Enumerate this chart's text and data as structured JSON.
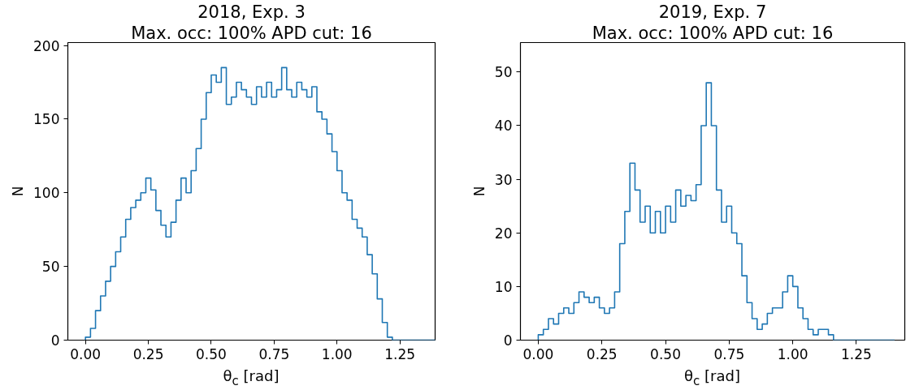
{
  "chart_data": [
    {
      "type": "histogram",
      "title": "2018, Exp. 3",
      "subtitle": "Max. occ: 100% APD cut: 16",
      "xlabel": "θ$_{c}$ [rad]",
      "ylabel": "N",
      "color": "#1f77b4",
      "bins": [
        0.0,
        0.02,
        0.04,
        0.06,
        0.08,
        0.1,
        0.12,
        0.14,
        0.16,
        0.18,
        0.2,
        0.22,
        0.24,
        0.26,
        0.28,
        0.3,
        0.32,
        0.34,
        0.36,
        0.38,
        0.4,
        0.42,
        0.44,
        0.46,
        0.48,
        0.5,
        0.52,
        0.54,
        0.56,
        0.58,
        0.6,
        0.62,
        0.64,
        0.66,
        0.68,
        0.7,
        0.72,
        0.74,
        0.76,
        0.78,
        0.8,
        0.82,
        0.84,
        0.86,
        0.88,
        0.9,
        0.92,
        0.94,
        0.96,
        0.98,
        1.0,
        1.02,
        1.04,
        1.06,
        1.08,
        1.1,
        1.12,
        1.14,
        1.16,
        1.18,
        1.2,
        1.22,
        1.24,
        1.26,
        1.28,
        1.3,
        1.32,
        1.34,
        1.36,
        1.38,
        1.4
      ],
      "values": [
        2,
        8,
        20,
        30,
        40,
        50,
        60,
        70,
        82,
        90,
        95,
        100,
        110,
        102,
        88,
        78,
        70,
        80,
        95,
        110,
        100,
        115,
        130,
        150,
        168,
        180,
        175,
        185,
        160,
        165,
        175,
        170,
        165,
        160,
        172,
        165,
        175,
        165,
        170,
        185,
        170,
        165,
        175,
        170,
        165,
        172,
        155,
        150,
        140,
        128,
        115,
        100,
        95,
        82,
        76,
        70,
        58,
        45,
        28,
        12,
        2,
        0,
        0,
        0,
        0,
        0,
        0,
        0,
        0,
        0
      ],
      "xlim": [
        -0.07,
        1.39
      ],
      "ylim": [
        0,
        202
      ],
      "xticks": [
        {
          "value": 0,
          "label": "0.00"
        },
        0.25,
        {
          "value": 0.5,
          "label": "0.50"
        },
        0.75,
        {
          "value": 1,
          "label": "1.00"
        },
        1.25
      ],
      "yticks": [
        0,
        50,
        100,
        150,
        200
      ],
      "grid": false
    },
    {
      "type": "histogram",
      "title": "2019, Exp. 7",
      "subtitle": "Max. occ: 100% APD cut: 16",
      "xlabel": "θ$_{c}$ [rad]",
      "ylabel": "N",
      "color": "#1f77b4",
      "bins": [
        0.0,
        0.02,
        0.04,
        0.06,
        0.08,
        0.1,
        0.12,
        0.14,
        0.16,
        0.18,
        0.2,
        0.22,
        0.24,
        0.26,
        0.28,
        0.3,
        0.32,
        0.34,
        0.36,
        0.38,
        0.4,
        0.42,
        0.44,
        0.46,
        0.48,
        0.5,
        0.52,
        0.54,
        0.56,
        0.58,
        0.6,
        0.62,
        0.64,
        0.66,
        0.68,
        0.7,
        0.72,
        0.74,
        0.76,
        0.78,
        0.8,
        0.82,
        0.84,
        0.86,
        0.88,
        0.9,
        0.92,
        0.94,
        0.96,
        0.98,
        1.0,
        1.02,
        1.04,
        1.06,
        1.08,
        1.1,
        1.12,
        1.14,
        1.16,
        1.18,
        1.2,
        1.22,
        1.24,
        1.26,
        1.28,
        1.3,
        1.32,
        1.34,
        1.36,
        1.38,
        1.4
      ],
      "values": [
        1,
        2,
        4,
        3,
        5,
        6,
        5,
        7,
        9,
        8,
        7,
        8,
        6,
        5,
        6,
        9,
        18,
        24,
        33,
        28,
        22,
        25,
        20,
        24,
        20,
        25,
        22,
        28,
        25,
        27,
        26,
        29,
        40,
        48,
        40,
        28,
        22,
        25,
        20,
        18,
        12,
        7,
        4,
        2,
        3,
        5,
        6,
        6,
        9,
        12,
        10,
        6,
        4,
        2,
        1,
        2,
        2,
        1,
        0,
        0,
        0,
        0,
        0,
        0,
        0,
        0,
        0,
        0,
        0,
        0
      ],
      "xlim": [
        -0.07,
        1.44
      ],
      "ylim": [
        0,
        55.5
      ],
      "xticks": [
        {
          "value": 0,
          "label": "0.00"
        },
        0.25,
        {
          "value": 0.5,
          "label": "0.50"
        },
        0.75,
        {
          "value": 1,
          "label": "1.00"
        },
        1.25
      ],
      "yticks": [
        0,
        10,
        20,
        30,
        40,
        50
      ],
      "grid": false
    }
  ]
}
